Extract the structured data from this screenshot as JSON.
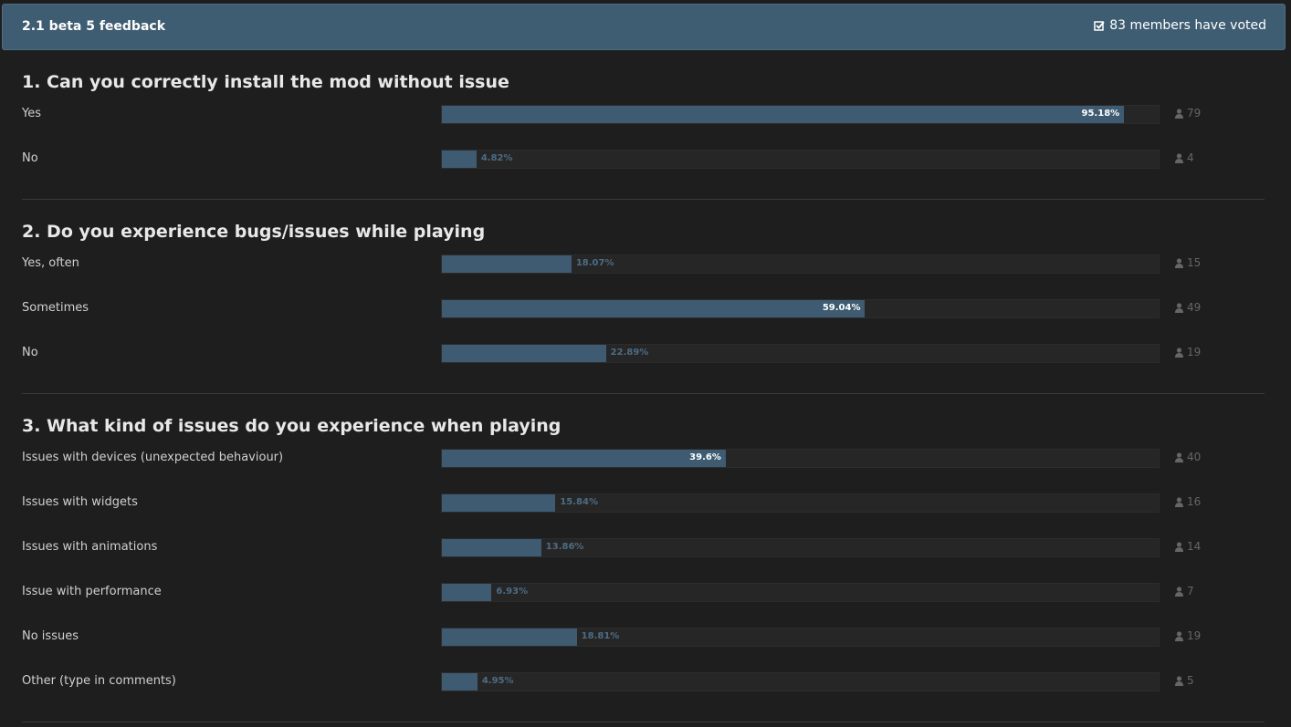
{
  "poll": {
    "title": "2.1 beta 5 feedback",
    "voters": "83 members have voted",
    "questions": [
      {
        "title": "1. Can you correctly install the mod without issue",
        "options": [
          {
            "label": "Yes",
            "percent": 95.18,
            "percent_label": "95.18%",
            "votes": 79
          },
          {
            "label": "No",
            "percent": 4.82,
            "percent_label": "4.82%",
            "votes": 4
          }
        ]
      },
      {
        "title": "2. Do you experience bugs/issues while playing",
        "options": [
          {
            "label": "Yes, often",
            "percent": 18.07,
            "percent_label": "18.07%",
            "votes": 15
          },
          {
            "label": "Sometimes",
            "percent": 59.04,
            "percent_label": "59.04%",
            "votes": 49
          },
          {
            "label": "No",
            "percent": 22.89,
            "percent_label": "22.89%",
            "votes": 19
          }
        ]
      },
      {
        "title": "3. What kind of issues do you experience when playing",
        "options": [
          {
            "label": "Issues with devices (unexpected behaviour)",
            "percent": 39.6,
            "percent_label": "39.6%",
            "votes": 40
          },
          {
            "label": "Issues with widgets",
            "percent": 15.84,
            "percent_label": "15.84%",
            "votes": 16
          },
          {
            "label": "Issues with animations",
            "percent": 13.86,
            "percent_label": "13.86%",
            "votes": 14
          },
          {
            "label": "Issue with performance",
            "percent": 6.93,
            "percent_label": "6.93%",
            "votes": 7
          },
          {
            "label": "No issues",
            "percent": 18.81,
            "percent_label": "18.81%",
            "votes": 19
          },
          {
            "label": "Other (type in comments)",
            "percent": 4.95,
            "percent_label": "4.95%",
            "votes": 5
          }
        ]
      }
    ]
  }
}
